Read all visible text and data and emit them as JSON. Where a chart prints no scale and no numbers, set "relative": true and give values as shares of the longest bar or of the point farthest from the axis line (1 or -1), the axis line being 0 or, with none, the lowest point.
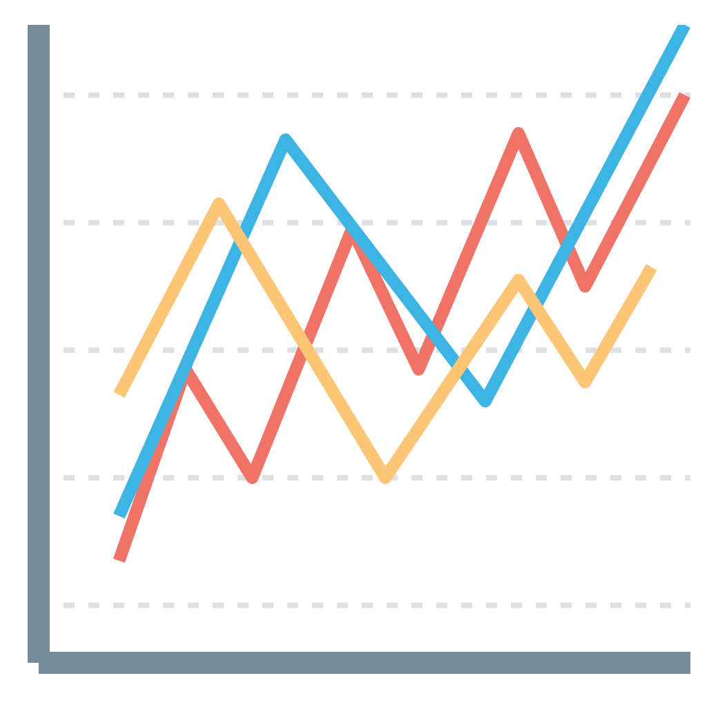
{
  "chart_data": {
    "type": "line",
    "relative": true,
    "grid": "y",
    "marker": "none",
    "line_style": "solid",
    "categories": [
      null,
      null,
      null,
      null,
      null,
      null,
      null,
      null,
      null,
      null,
      null,
      null,
      null,
      null,
      null,
      null,
      null,
      null,
      null,
      null
    ],
    "series": [
      {
        "color": "#ef7366",
        "values": [
          null,
          null,
          0.16,
          null,
          0.46,
          null,
          0.29,
          null,
          null,
          0.68,
          null,
          0.46,
          null,
          null,
          0.83,
          null,
          0.59,
          null,
          null,
          0.89
        ]
      },
      {
        "color": "#3db4e4",
        "values": [
          null,
          null,
          0.23,
          null,
          null,
          null,
          null,
          0.82,
          null,
          null,
          null,
          null,
          null,
          0.41,
          null,
          null,
          null,
          null,
          null,
          1.0
        ]
      },
      {
        "color": "#fdc676",
        "values": [
          null,
          null,
          0.42,
          null,
          null,
          0.72,
          null,
          null,
          null,
          null,
          0.29,
          null,
          null,
          null,
          0.6,
          null,
          0.44,
          null,
          0.62,
          null
        ]
      }
    ]
  }
}
